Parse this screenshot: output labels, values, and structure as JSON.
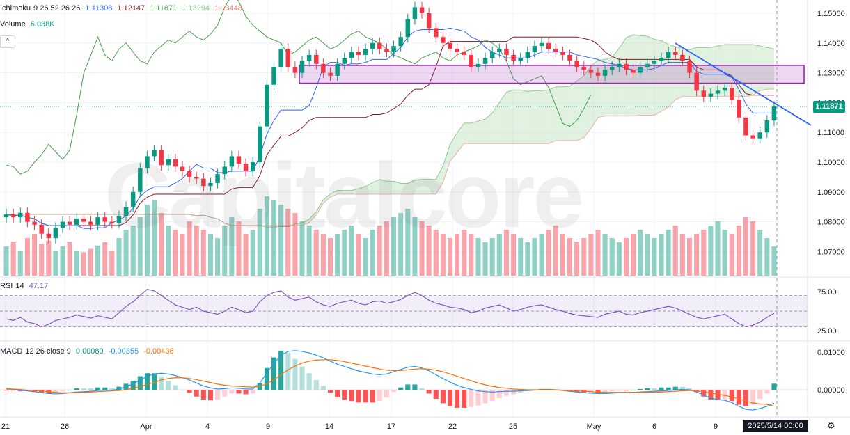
{
  "watermark": "Capitalcore",
  "legends": {
    "ichimoku": {
      "name": "Ichimoku",
      "params": "9 26 52 26 26",
      "v1": "1.11308",
      "v2": "1.12147",
      "v3": "1.11871",
      "v4": "1.13294",
      "v5": "1.13448"
    },
    "volume": {
      "name": "Volume",
      "value": "6.038K"
    },
    "rsi": {
      "name": "RSI",
      "params": "14",
      "value": "47.17"
    },
    "macd": {
      "name": "MACD",
      "params": "12 26 close 9",
      "v1": "0.00080",
      "v2": "-0.00355",
      "v3": "-0.00436"
    }
  },
  "collapse_glyph": "^",
  "current_price": "1.11871",
  "crosshair_time": "2025/5/14  00:00",
  "gear_glyph": "⚙",
  "colors": {
    "up": "#089981",
    "down": "#f23645",
    "tenkan": "#2962ff",
    "kijun": "#801922",
    "chikou": "#43a047",
    "cloud_up": "#a5d6a7",
    "cloud_down": "#ef9a9a",
    "rsi": "#7e57c2",
    "macd": "#2196f3",
    "signal": "#ff6d00",
    "zone": "#9c27b0",
    "trendline": "#2962ff"
  },
  "chart_data": [
    {
      "type": "candlestick",
      "title": "",
      "pair": "",
      "y_tick_labels": [
        "1.15000",
        "1.14000",
        "1.13000",
        "1.12000",
        "1.11000",
        "1.10000",
        "1.09000",
        "1.08000",
        "1.07000"
      ],
      "ylim": [
        1.062,
        1.153
      ],
      "x_tick_labels": [
        "21",
        "26",
        "Apr",
        "4",
        "9",
        "14",
        "17",
        "22",
        "25",
        "May",
        "6",
        "9"
      ],
      "ohlc_summary": {
        "start": 1.0815,
        "high": 1.152,
        "low": 1.0735,
        "last": 1.11871
      },
      "path": [
        1.0825,
        1.0815,
        1.083,
        1.08,
        1.079,
        1.076,
        1.0745,
        1.078,
        1.08,
        1.079,
        1.081,
        1.08,
        1.079,
        1.0815,
        1.08,
        1.0795,
        1.082,
        1.085,
        1.09,
        1.098,
        1.102,
        1.104,
        1.099,
        1.101,
        1.0985,
        1.097,
        1.095,
        1.0945,
        1.092,
        1.093,
        1.096,
        1.0985,
        1.102,
        1.0995,
        1.097,
        1.1,
        1.112,
        1.126,
        1.132,
        1.138,
        1.132,
        1.13,
        1.134,
        1.136,
        1.133,
        1.13,
        1.129,
        1.133,
        1.135,
        1.137,
        1.136,
        1.138,
        1.14,
        1.138,
        1.137,
        1.139,
        1.142,
        1.148,
        1.152,
        1.15,
        1.145,
        1.142,
        1.14,
        1.138,
        1.137,
        1.136,
        1.132,
        1.133,
        1.135,
        1.137,
        1.138,
        1.136,
        1.134,
        1.135,
        1.137,
        1.139,
        1.14,
        1.138,
        1.137,
        1.136,
        1.134,
        1.132,
        1.131,
        1.13,
        1.129,
        1.131,
        1.132,
        1.133,
        1.131,
        1.13,
        1.132,
        1.133,
        1.134,
        1.135,
        1.137,
        1.136,
        1.134,
        1.13,
        1.124,
        1.122,
        1.123,
        1.124,
        1.125,
        1.121,
        1.115,
        1.109,
        1.108,
        1.11,
        1.114,
        1.1187
      ],
      "volume_series": [
        0.35,
        0.4,
        0.3,
        0.45,
        0.5,
        0.38,
        0.42,
        0.3,
        0.35,
        0.4,
        0.3,
        0.28,
        0.32,
        0.36,
        0.4,
        0.3,
        0.45,
        0.55,
        0.6,
        0.7,
        0.85,
        0.9,
        0.75,
        0.6,
        0.55,
        0.5,
        0.65,
        0.6,
        0.55,
        0.5,
        0.45,
        0.6,
        0.7,
        0.65,
        0.5,
        0.55,
        0.8,
        0.95,
        0.9,
        0.85,
        0.8,
        0.75,
        0.65,
        0.6,
        0.55,
        0.5,
        0.45,
        0.5,
        0.55,
        0.6,
        0.5,
        0.45,
        0.55,
        0.6,
        0.65,
        0.7,
        0.75,
        0.8,
        0.7,
        0.65,
        0.6,
        0.55,
        0.5,
        0.45,
        0.5,
        0.55,
        0.5,
        0.45,
        0.4,
        0.45,
        0.5,
        0.55,
        0.5,
        0.45,
        0.4,
        0.45,
        0.5,
        0.55,
        0.6,
        0.5,
        0.45,
        0.4,
        0.45,
        0.5,
        0.55,
        0.5,
        0.45,
        0.4,
        0.45,
        0.5,
        0.55,
        0.5,
        0.45,
        0.5,
        0.55,
        0.6,
        0.5,
        0.45,
        0.5,
        0.55,
        0.6,
        0.65,
        0.55,
        0.5,
        0.6,
        0.7,
        0.65,
        0.55,
        0.45,
        0.35
      ]
    },
    {
      "type": "line",
      "title": "",
      "y_tick_labels": [
        "75.00",
        "25.00"
      ],
      "ylim": [
        0,
        100
      ],
      "bands": [
        30,
        70
      ],
      "values": [
        40,
        38,
        42,
        36,
        34,
        30,
        33,
        38,
        40,
        42,
        45,
        43,
        41,
        44,
        42,
        40,
        48,
        56,
        62,
        70,
        78,
        76,
        70,
        64,
        58,
        55,
        52,
        55,
        50,
        48,
        46,
        50,
        55,
        52,
        48,
        50,
        62,
        70,
        74,
        76,
        68,
        64,
        66,
        68,
        62,
        58,
        56,
        60,
        62,
        64,
        60,
        58,
        62,
        63,
        60,
        62,
        65,
        70,
        74,
        70,
        64,
        60,
        58,
        55,
        54,
        52,
        48,
        50,
        54,
        56,
        58,
        54,
        50,
        52,
        55,
        57,
        58,
        55,
        52,
        50,
        47,
        45,
        44,
        43,
        42,
        46,
        48,
        50,
        46,
        45,
        48,
        50,
        52,
        54,
        56,
        54,
        50,
        46,
        42,
        40,
        42,
        44,
        46,
        40,
        34,
        30,
        32,
        36,
        42,
        47.17
      ]
    },
    {
      "type": "line+bar",
      "title": "",
      "y_tick_labels": [
        "0.01000",
        "0.00000"
      ],
      "ylim": [
        -0.0057,
        0.0112
      ],
      "macd": [
        0.0002,
        0.0001,
        -0.0001,
        -0.0003,
        -0.0005,
        -0.0008,
        -0.001,
        -0.0011,
        -0.001,
        -0.0008,
        -0.0006,
        -0.0005,
        -0.0004,
        -0.0002,
        -0.0001,
        -0.0001,
        0.0002,
        0.0008,
        0.0016,
        0.0026,
        0.0036,
        0.0042,
        0.0044,
        0.0042,
        0.0038,
        0.0032,
        0.0026,
        0.0018,
        0.001,
        0.0005,
        0.0002,
        0.0003,
        0.0005,
        0.0004,
        0.0002,
        0.0002,
        0.0018,
        0.0045,
        0.007,
        0.0092,
        0.0102,
        0.0104,
        0.0102,
        0.0098,
        0.0092,
        0.0085,
        0.0076,
        0.0068,
        0.0062,
        0.0056,
        0.005,
        0.0046,
        0.0042,
        0.004,
        0.0042,
        0.0048,
        0.0054,
        0.006,
        0.0062,
        0.0058,
        0.005,
        0.004,
        0.003,
        0.002,
        0.0012,
        0.0006,
        0.0001,
        -0.0003,
        -0.0005,
        -0.0006,
        -0.0005,
        -0.0004,
        -0.0004,
        -0.0003,
        -0.0002,
        -0.0001,
        0.0001,
        0.0001,
        0,
        -0.0002,
        -0.0004,
        -0.0006,
        -0.0008,
        -0.0009,
        -0.001,
        -0.001,
        -0.0009,
        -0.0008,
        -0.0008,
        -0.0007,
        -0.0006,
        -0.0005,
        -0.0004,
        -0.0003,
        -0.0002,
        0,
        0.0001,
        0,
        -0.0006,
        -0.0014,
        -0.0022,
        -0.0026,
        -0.0028,
        -0.0034,
        -0.0044,
        -0.0052,
        -0.0054,
        -0.005,
        -0.0044,
        -0.00355
      ],
      "signal": [
        0.0003,
        0.0002,
        0.0001,
        -0.0001,
        -0.0002,
        -0.0004,
        -0.0005,
        -0.0007,
        -0.0008,
        -0.0008,
        -0.0008,
        -0.0007,
        -0.0006,
        -0.0005,
        -0.0004,
        -0.0003,
        -0.0002,
        0,
        0.0004,
        0.0008,
        0.0014,
        0.002,
        0.0026,
        0.003,
        0.0032,
        0.0032,
        0.003,
        0.0027,
        0.0023,
        0.0019,
        0.0015,
        0.0012,
        0.001,
        0.0009,
        0.0008,
        0.0007,
        0.0009,
        0.0016,
        0.0027,
        0.004,
        0.0053,
        0.0063,
        0.0071,
        0.0076,
        0.0079,
        0.008,
        0.008,
        0.0078,
        0.0075,
        0.0071,
        0.0067,
        0.0063,
        0.0059,
        0.0055,
        0.0052,
        0.0051,
        0.0051,
        0.0053,
        0.0055,
        0.0056,
        0.0055,
        0.0052,
        0.0048,
        0.0042,
        0.0036,
        0.003,
        0.0024,
        0.0018,
        0.0013,
        0.0009,
        0.0006,
        0.0004,
        0.0002,
        0.0001,
        0,
        0,
        0,
        0,
        0,
        -0.0001,
        -0.0002,
        -0.0003,
        -0.0004,
        -0.0005,
        -0.0006,
        -0.0007,
        -0.0007,
        -0.0007,
        -0.0007,
        -0.0007,
        -0.0007,
        -0.0007,
        -0.0006,
        -0.0006,
        -0.0005,
        -0.0004,
        -0.0003,
        -0.0002,
        -0.0003,
        -0.0005,
        -0.0009,
        -0.0012,
        -0.0015,
        -0.0019,
        -0.0024,
        -0.003,
        -0.0035,
        -0.0038,
        -0.0039,
        -0.00436
      ]
    }
  ]
}
